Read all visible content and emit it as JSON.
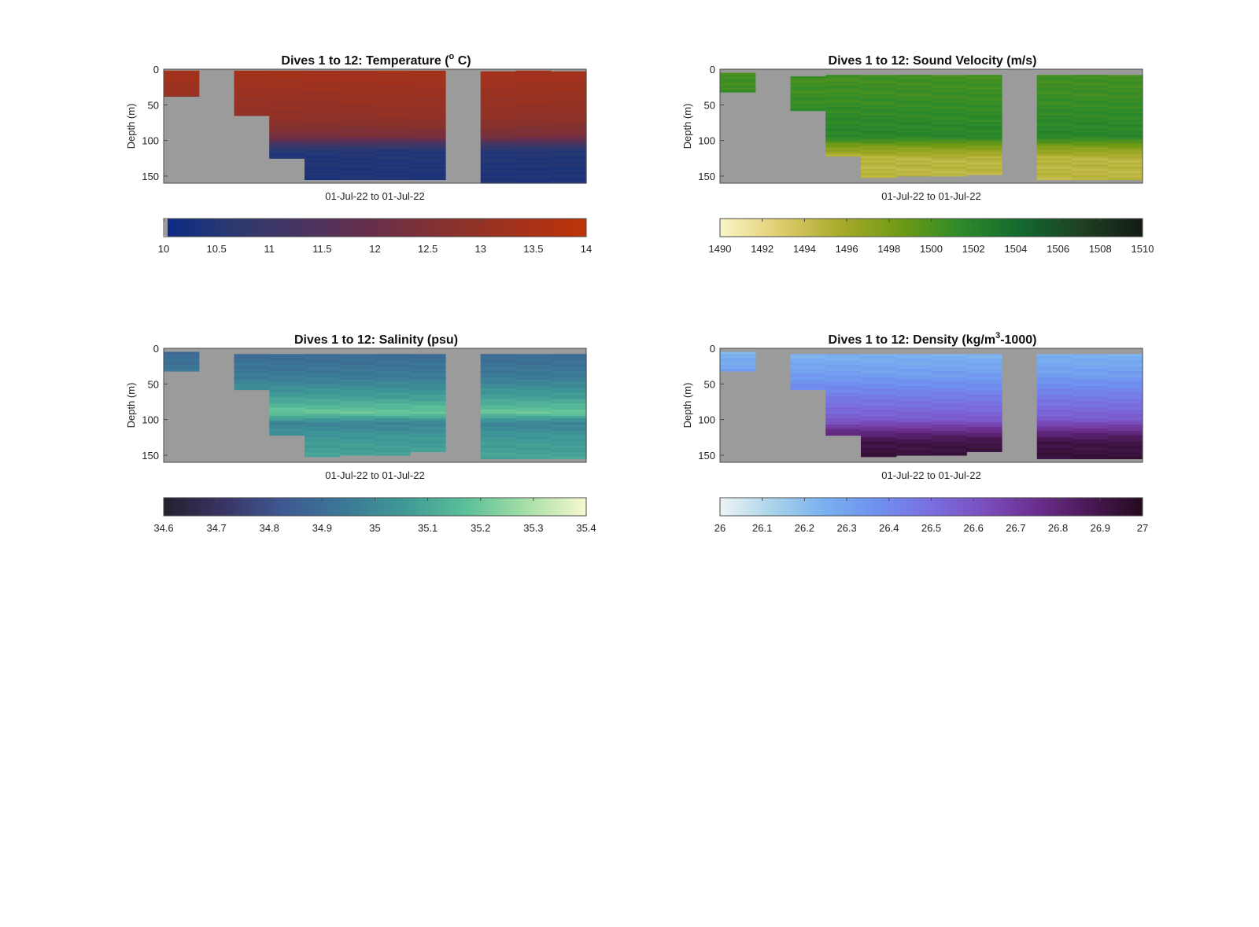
{
  "colors": {
    "missing": "#9b9b9b",
    "frame": "#4a4a4a"
  },
  "chart_data": [
    {
      "type": "heatmap",
      "title": "Dives 1 to 12: Temperature (",
      "title_sup": "o",
      "title_tail": " C)",
      "xlabel": "01-Jul-22 to 01-Jul-22",
      "ylabel": "Depth (m)",
      "ylim": [
        0,
        160
      ],
      "yticks": [
        "0",
        "50",
        "100",
        "150"
      ],
      "dives": 12,
      "colorbar": {
        "range": [
          10,
          14
        ],
        "ticks": [
          "10",
          "10.5",
          "11",
          "11.5",
          "12",
          "12.5",
          "13",
          "13.5",
          "14"
        ],
        "colors": [
          "#0b2a86",
          "#2b3a70",
          "#4a3460",
          "#6a2e4a",
          "#86322e",
          "#a3321c",
          "#bf3308"
        ]
      },
      "profile_depths": [
        0,
        35,
        70,
        95,
        105,
        115,
        160
      ],
      "profile_values": [
        13.4,
        13.1,
        12.9,
        12.3,
        11.2,
        10.5,
        10.4
      ],
      "dive_columns": [
        {
          "dive": 1,
          "top": 2,
          "bottom": 38
        },
        {
          "dive": 2,
          "top": null,
          "bottom": null
        },
        {
          "dive": 3,
          "top": 2,
          "bottom": 65
        },
        {
          "dive": 4,
          "top": 2,
          "bottom": 125
        },
        {
          "dive": 5,
          "top": 2,
          "bottom": 155
        },
        {
          "dive": 6,
          "top": 2,
          "bottom": 155
        },
        {
          "dive": 7,
          "top": 2,
          "bottom": 155
        },
        {
          "dive": 8,
          "top": 2,
          "bottom": 155
        },
        {
          "dive": 9,
          "top": null,
          "bottom": null
        },
        {
          "dive": 10,
          "top": 3,
          "bottom": 160
        },
        {
          "dive": 11,
          "top": 2,
          "bottom": 160
        },
        {
          "dive": 12,
          "top": 3,
          "bottom": 160
        }
      ]
    },
    {
      "type": "heatmap",
      "title": "Dives 1 to 12: Sound Velocity (m/s)",
      "title_sup": "",
      "title_tail": "",
      "xlabel": "01-Jul-22 to 01-Jul-22",
      "ylabel": "Depth (m)",
      "ylim": [
        0,
        160
      ],
      "yticks": [
        "0",
        "50",
        "100",
        "150"
      ],
      "dives": 12,
      "colorbar": {
        "range": [
          1490,
          1510
        ],
        "ticks": [
          "1490",
          "1492",
          "1494",
          "1496",
          "1498",
          "1500",
          "1502",
          "1504",
          "1506",
          "1508",
          "1510"
        ],
        "colors": [
          "#fbf5c9",
          "#e0cc6e",
          "#a7aa2a",
          "#6e9a14",
          "#2c8a2a",
          "#12692e",
          "#1f3f22",
          "#141b14"
        ]
      },
      "profile_depths": [
        0,
        40,
        80,
        95,
        110,
        125,
        160
      ],
      "profile_values": [
        1500.3,
        1500.8,
        1501.6,
        1501.8,
        1497.5,
        1494.8,
        1494.6
      ],
      "dive_columns": [
        {
          "dive": 1,
          "top": 5,
          "bottom": 32
        },
        {
          "dive": 2,
          "top": null,
          "bottom": null
        },
        {
          "dive": 3,
          "top": 10,
          "bottom": 58
        },
        {
          "dive": 4,
          "top": 8,
          "bottom": 122
        },
        {
          "dive": 5,
          "top": 8,
          "bottom": 152
        },
        {
          "dive": 6,
          "top": 8,
          "bottom": 150
        },
        {
          "dive": 7,
          "top": 8,
          "bottom": 150
        },
        {
          "dive": 8,
          "top": 8,
          "bottom": 148
        },
        {
          "dive": 9,
          "top": null,
          "bottom": null
        },
        {
          "dive": 10,
          "top": 8,
          "bottom": 155
        },
        {
          "dive": 11,
          "top": 8,
          "bottom": 155
        },
        {
          "dive": 12,
          "top": 8,
          "bottom": 155
        }
      ]
    },
    {
      "type": "heatmap",
      "title": "Dives 1 to 12: Salinity (psu)",
      "title_sup": "",
      "title_tail": "",
      "xlabel": "01-Jul-22 to 01-Jul-22",
      "ylabel": "Depth (m)",
      "ylim": [
        0,
        160
      ],
      "yticks": [
        "0",
        "50",
        "100",
        "150"
      ],
      "dives": 12,
      "colorbar": {
        "range": [
          34.6,
          35.4
        ],
        "ticks": [
          "34.6",
          "34.7",
          "34.8",
          "34.9",
          "35",
          "35.1",
          "35.2",
          "35.3",
          "35.4"
        ],
        "colors": [
          "#24202e",
          "#3a3466",
          "#3e5a93",
          "#3b7996",
          "#3f9a96",
          "#5bbf98",
          "#a6dfa6",
          "#f6f8cf"
        ]
      },
      "profile_depths": [
        0,
        40,
        70,
        90,
        105,
        125,
        160
      ],
      "profile_values": [
        34.88,
        34.95,
        35.08,
        35.2,
        34.98,
        35.05,
        35.1
      ],
      "dive_columns": [
        {
          "dive": 1,
          "top": 5,
          "bottom": 32
        },
        {
          "dive": 2,
          "top": null,
          "bottom": null
        },
        {
          "dive": 3,
          "top": 8,
          "bottom": 58
        },
        {
          "dive": 4,
          "top": 8,
          "bottom": 122
        },
        {
          "dive": 5,
          "top": 8,
          "bottom": 152
        },
        {
          "dive": 6,
          "top": 8,
          "bottom": 150
        },
        {
          "dive": 7,
          "top": 8,
          "bottom": 150
        },
        {
          "dive": 8,
          "top": 8,
          "bottom": 145
        },
        {
          "dive": 9,
          "top": null,
          "bottom": null
        },
        {
          "dive": 10,
          "top": 8,
          "bottom": 155
        },
        {
          "dive": 11,
          "top": 8,
          "bottom": 155
        },
        {
          "dive": 12,
          "top": 8,
          "bottom": 155
        }
      ]
    },
    {
      "type": "heatmap",
      "title": "Dives 1 to 12: Density (kg/m",
      "title_sup": "3",
      "title_tail": "-1000)",
      "xlabel": "01-Jul-22 to 01-Jul-22",
      "ylabel": "Depth (m)",
      "ylim": [
        0,
        160
      ],
      "yticks": [
        "0",
        "50",
        "100",
        "150"
      ],
      "dives": 12,
      "colorbar": {
        "range": [
          26,
          27
        ],
        "ticks": [
          "26",
          "26.1",
          "26.2",
          "26.3",
          "26.4",
          "26.5",
          "26.6",
          "26.7",
          "26.8",
          "26.9",
          "27"
        ],
        "colors": [
          "#eef5f5",
          "#a9d3ea",
          "#78b0ef",
          "#6f8fef",
          "#7a6ee0",
          "#7a4fbe",
          "#6b2e8e",
          "#4a1855",
          "#230b1e"
        ]
      },
      "profile_depths": [
        0,
        40,
        80,
        100,
        115,
        130,
        160
      ],
      "profile_values": [
        26.22,
        26.33,
        26.5,
        26.58,
        26.75,
        26.9,
        26.95
      ],
      "dive_columns": [
        {
          "dive": 1,
          "top": 5,
          "bottom": 32
        },
        {
          "dive": 2,
          "top": null,
          "bottom": null
        },
        {
          "dive": 3,
          "top": 8,
          "bottom": 58
        },
        {
          "dive": 4,
          "top": 8,
          "bottom": 122
        },
        {
          "dive": 5,
          "top": 8,
          "bottom": 152
        },
        {
          "dive": 6,
          "top": 8,
          "bottom": 150
        },
        {
          "dive": 7,
          "top": 8,
          "bottom": 150
        },
        {
          "dive": 8,
          "top": 8,
          "bottom": 145
        },
        {
          "dive": 9,
          "top": null,
          "bottom": null
        },
        {
          "dive": 10,
          "top": 8,
          "bottom": 155
        },
        {
          "dive": 11,
          "top": 8,
          "bottom": 155
        },
        {
          "dive": 12,
          "top": 8,
          "bottom": 155
        }
      ]
    }
  ]
}
